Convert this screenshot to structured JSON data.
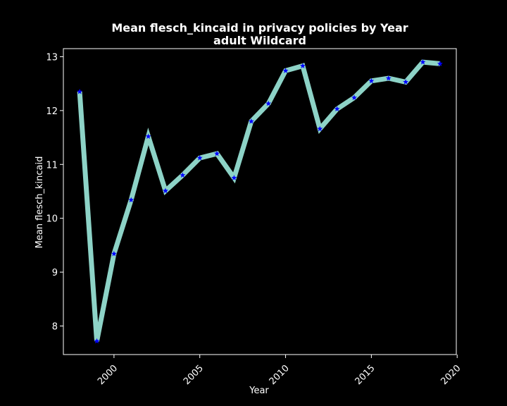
{
  "chart_data": {
    "type": "line",
    "title": "Mean flesch_kincaid in privacy policies by Year",
    "subtitle": "adult Wildcard",
    "xlabel": "Year",
    "ylabel": "Mean flesch_kincaid",
    "x": [
      1998,
      1999,
      2000,
      2001,
      2002,
      2003,
      2004,
      2005,
      2006,
      2007,
      2008,
      2009,
      2010,
      2011,
      2012,
      2013,
      2014,
      2015,
      2016,
      2017,
      2018,
      2019
    ],
    "series": [
      {
        "values": [
          12.35,
          7.72,
          9.34,
          10.34,
          11.52,
          10.51,
          10.8,
          11.12,
          11.2,
          10.75,
          11.8,
          12.13,
          12.74,
          12.83,
          11.66,
          12.03,
          12.24,
          12.55,
          12.6,
          12.53,
          12.9,
          12.87
        ],
        "line_color": "#8dd3c7",
        "marker_color": "#0000ff",
        "marker": "star"
      }
    ],
    "xlim": [
      1997.05,
      2019.95
    ],
    "ylim": [
      7.47,
      13.15
    ],
    "xticks": [
      "2000",
      "2005",
      "2010",
      "2015",
      "2020"
    ],
    "yticks": [
      "8",
      "9",
      "10",
      "11",
      "12",
      "13"
    ],
    "background": "#000000",
    "axis_color": "#ffffff",
    "grid": false,
    "legend": "none"
  }
}
